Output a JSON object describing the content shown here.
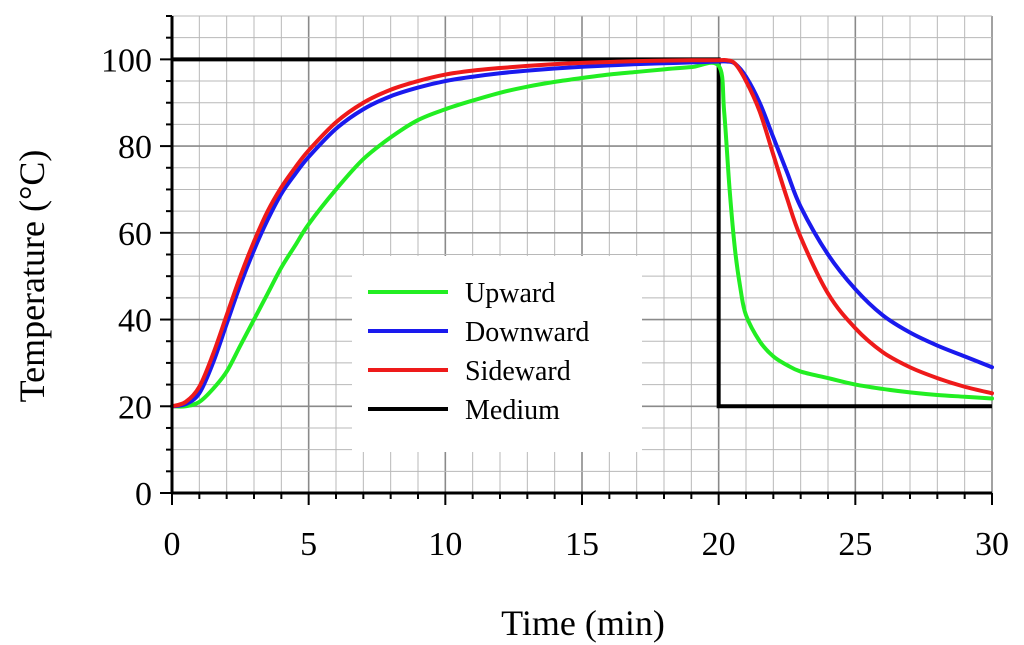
{
  "chart_data": {
    "type": "line",
    "title": "",
    "xlabel": "Time (min)",
    "ylabel": "Temperature (°C)",
    "xlim": [
      0,
      30
    ],
    "ylim": [
      0,
      110
    ],
    "xticks": [
      0,
      5,
      10,
      15,
      20,
      25,
      30
    ],
    "yticks": [
      0,
      20,
      40,
      60,
      80,
      100
    ],
    "x_minor_step": 1,
    "y_minor_step": 5,
    "grid": true,
    "legend_position": "center",
    "series": [
      {
        "name": "Upward",
        "color": "#22ee22",
        "x": [
          0,
          0.5,
          1,
          1.5,
          2,
          2.5,
          3,
          3.5,
          4,
          4.5,
          5,
          6,
          7,
          8,
          9,
          10,
          11,
          12,
          13,
          14,
          15,
          16,
          17,
          18,
          19,
          20,
          20.2,
          20.4,
          20.6,
          20.8,
          21,
          21.5,
          22,
          22.5,
          23,
          24,
          25,
          26,
          27,
          28,
          29,
          30
        ],
        "y": [
          20,
          20,
          21,
          24,
          28,
          34,
          40,
          46,
          52,
          57,
          62,
          70,
          77,
          82,
          86,
          88.5,
          90.5,
          92.3,
          93.7,
          94.8,
          95.7,
          96.5,
          97.1,
          97.7,
          98.2,
          98.5,
          88,
          70,
          56,
          47,
          41,
          35,
          31.5,
          29.5,
          28,
          26.5,
          25,
          24,
          23.2,
          22.6,
          22.2,
          21.8
        ]
      },
      {
        "name": "Downward",
        "color": "#1a1aee",
        "x": [
          0,
          0.5,
          1,
          1.5,
          2,
          2.5,
          3,
          3.5,
          4,
          4.5,
          5,
          6,
          7,
          8,
          9,
          10,
          11,
          12,
          13,
          14,
          15,
          16,
          17,
          18,
          19,
          20,
          20.3,
          20.6,
          21,
          21.5,
          22,
          22.5,
          23,
          24,
          25,
          26,
          27,
          28,
          29,
          30
        ],
        "y": [
          20,
          20.5,
          23,
          30,
          39,
          48,
          56,
          63,
          69,
          73.5,
          77.5,
          84,
          88.5,
          91.5,
          93.5,
          95,
          96,
          96.8,
          97.4,
          97.9,
          98.3,
          98.6,
          98.9,
          99.1,
          99.3,
          99.5,
          99.5,
          99,
          96,
          90,
          82,
          74,
          66,
          55,
          47,
          41,
          37,
          34,
          31.5,
          29
        ]
      },
      {
        "name": "Sideward",
        "color": "#ee1a1a",
        "x": [
          0,
          0.5,
          1,
          1.5,
          2,
          2.5,
          3,
          3.5,
          4,
          4.5,
          5,
          6,
          7,
          8,
          9,
          10,
          11,
          12,
          13,
          14,
          15,
          16,
          17,
          18,
          19,
          20,
          20.3,
          20.6,
          21,
          21.5,
          22,
          22.5,
          23,
          24,
          25,
          26,
          27,
          28,
          29,
          30
        ],
        "y": [
          20,
          21,
          24.5,
          32,
          41,
          50,
          58,
          65,
          70.5,
          75,
          79,
          85.5,
          90,
          93,
          95,
          96.5,
          97.4,
          98,
          98.5,
          98.9,
          99.2,
          99.4,
          99.6,
          99.7,
          99.8,
          99.8,
          99.8,
          99,
          95,
          88,
          78,
          68,
          59,
          46,
          38,
          32.5,
          29,
          26.5,
          24.5,
          23
        ]
      },
      {
        "name": "Medium",
        "color": "#000000",
        "x": [
          0,
          20,
          20,
          30
        ],
        "y": [
          100,
          100,
          20,
          20
        ]
      }
    ]
  }
}
